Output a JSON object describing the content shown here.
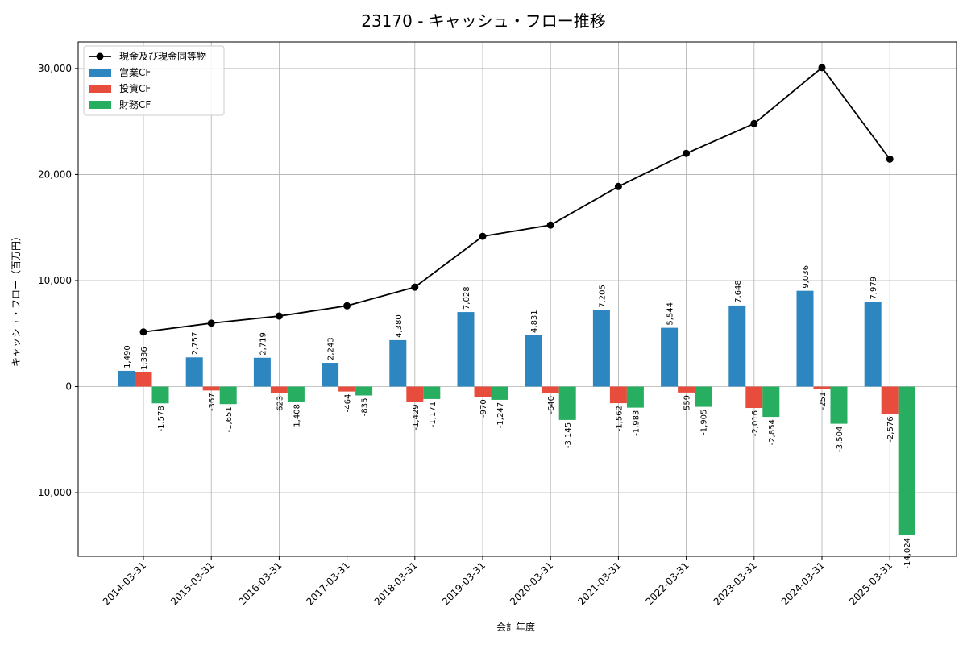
{
  "chart_data": {
    "type": "bar",
    "title": "23170 - キャッシュ・フロー推移",
    "xlabel": "会計年度",
    "ylabel": "キャッシュ・フロー（百万円）",
    "ylim": [
      -16000,
      32500
    ],
    "yticks": [
      -10000,
      0,
      10000,
      20000,
      30000
    ],
    "ytick_labels": [
      "-10,000",
      "0",
      "10,000",
      "20,000",
      "30,000"
    ],
    "grid": true,
    "legend_position": "top-left",
    "categories": [
      "2014-03-31",
      "2015-03-31",
      "2016-03-31",
      "2017-03-31",
      "2018-03-31",
      "2019-03-31",
      "2020-03-31",
      "2021-03-31",
      "2022-03-31",
      "2023-03-31",
      "2024-03-31",
      "2025-03-31"
    ],
    "series": [
      {
        "name": "営業CF",
        "kind": "bar",
        "color": "#2e86c1",
        "values": [
          1490,
          2757,
          2719,
          2243,
          4380,
          7028,
          4831,
          7205,
          5544,
          7648,
          9036,
          7979
        ],
        "labels": [
          "1,490",
          "2,757",
          "2,719",
          "2,243",
          "4,380",
          "7,028",
          "4,831",
          "7,205",
          "5,544",
          "7,648",
          "9,036",
          "7,979"
        ]
      },
      {
        "name": "投資CF",
        "kind": "bar",
        "color": "#e74c3c",
        "values": [
          1336,
          -367,
          -623,
          -464,
          -1429,
          -970,
          -640,
          -1562,
          -559,
          -2016,
          -251,
          -2576
        ],
        "labels": [
          "1,336",
          "-367",
          "-623",
          "-464",
          "-1,429",
          "-970",
          "-640",
          "-1,562",
          "-559",
          "-2,016",
          "-251",
          "-2,576"
        ]
      },
      {
        "name": "財務CF",
        "kind": "bar",
        "color": "#27ae60",
        "values": [
          -1578,
          -1651,
          -1408,
          -835,
          -1171,
          -1247,
          -3145,
          -1983,
          -1905,
          -2854,
          -3504,
          -14024
        ],
        "labels": [
          "-1,578",
          "-1,651",
          "-1,408",
          "-835",
          "-1,171",
          "-1,247",
          "-3,145",
          "-1,983",
          "-1,905",
          "-2,854",
          "-3,504",
          "-14,024"
        ]
      },
      {
        "name": "現金及び現金同等物",
        "kind": "line",
        "color": "#000000",
        "values": [
          5150,
          5980,
          6650,
          7620,
          9380,
          14170,
          15230,
          18870,
          21990,
          24800,
          30080,
          21450
        ]
      }
    ]
  }
}
